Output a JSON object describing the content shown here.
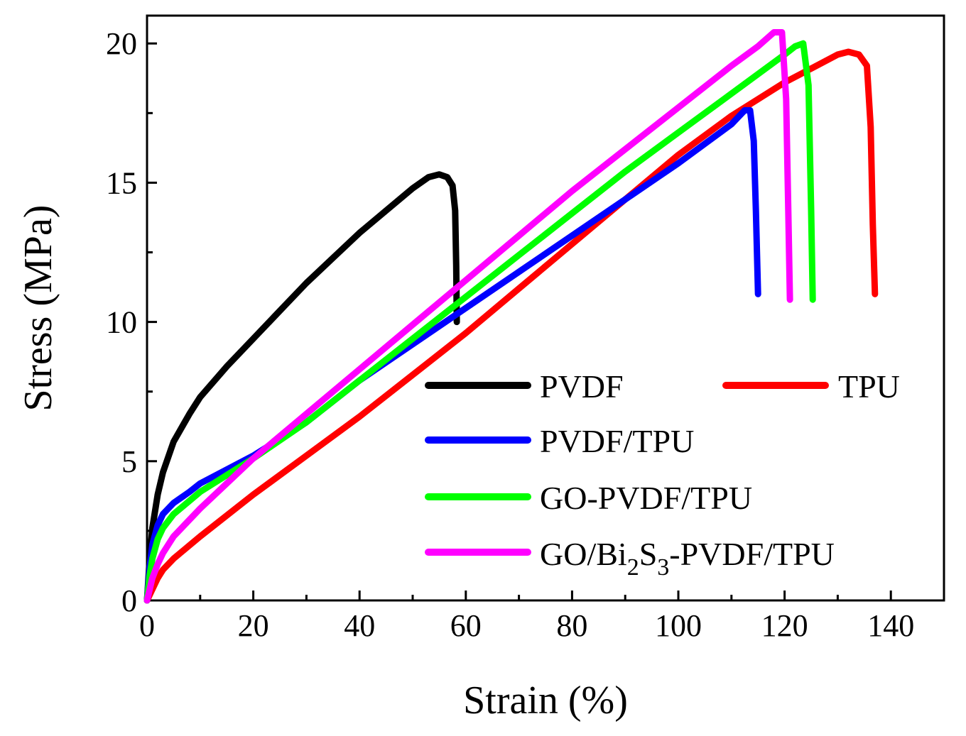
{
  "chart_data": {
    "type": "line",
    "xlabel": "Strain (%)",
    "ylabel": "Stress (MPa)",
    "xlim": [
      0,
      150
    ],
    "ylim": [
      0,
      21
    ],
    "x_ticks": [
      0,
      20,
      40,
      60,
      80,
      100,
      120,
      140
    ],
    "y_ticks": [
      0,
      5,
      10,
      15,
      20
    ],
    "grid": false,
    "legend_position": "bottom-right",
    "series": [
      {
        "name": "PVDF",
        "color": "#000000",
        "x": [
          0,
          0.5,
          1,
          2,
          3,
          5,
          8,
          10,
          15,
          20,
          25,
          30,
          35,
          40,
          45,
          50,
          53,
          55,
          56.5,
          57.5,
          58,
          58.2,
          58.3
        ],
        "y": [
          0,
          1.5,
          2.6,
          3.8,
          4.6,
          5.7,
          6.7,
          7.3,
          8.4,
          9.4,
          10.4,
          11.4,
          12.3,
          13.2,
          14.0,
          14.8,
          15.2,
          15.3,
          15.2,
          14.9,
          14.0,
          12.0,
          10.0
        ]
      },
      {
        "name": "TPU",
        "color": "#ff0000",
        "x": [
          0,
          1,
          2,
          3,
          5,
          10,
          20,
          30,
          40,
          50,
          60,
          70,
          80,
          90,
          100,
          110,
          120,
          125,
          130,
          132,
          134,
          135.5,
          136.2,
          136.6,
          137
        ],
        "y": [
          0,
          0.4,
          0.8,
          1.1,
          1.5,
          2.3,
          3.8,
          5.2,
          6.6,
          8.1,
          9.6,
          11.2,
          12.8,
          14.4,
          16.0,
          17.4,
          18.6,
          19.1,
          19.6,
          19.7,
          19.6,
          19.2,
          17.0,
          13.5,
          11.0
        ]
      },
      {
        "name": "PVDF/TPU",
        "color": "#0000ff",
        "x": [
          0,
          0.5,
          1,
          2,
          3,
          5,
          8,
          10,
          15,
          20,
          30,
          40,
          50,
          60,
          70,
          80,
          90,
          100,
          105,
          110,
          112.5,
          113.5,
          114.2,
          114.6,
          115
        ],
        "y": [
          0,
          1.2,
          2.0,
          2.7,
          3.1,
          3.5,
          3.9,
          4.2,
          4.7,
          5.2,
          6.4,
          7.9,
          9.2,
          10.5,
          11.8,
          13.1,
          14.4,
          15.7,
          16.4,
          17.1,
          17.6,
          17.6,
          16.5,
          14.0,
          11.0
        ]
      },
      {
        "name": "GO-PVDF/TPU",
        "color": "#00ff00",
        "x": [
          0,
          0.5,
          1,
          2,
          3,
          5,
          10,
          15,
          20,
          30,
          40,
          50,
          60,
          70,
          80,
          90,
          100,
          110,
          115,
          120,
          122,
          123.5,
          124.5,
          125,
          125.3
        ],
        "y": [
          0,
          0.9,
          1.5,
          2.2,
          2.6,
          3.1,
          3.9,
          4.5,
          5.1,
          6.4,
          7.9,
          9.4,
          10.9,
          12.4,
          13.9,
          15.4,
          16.8,
          18.2,
          18.9,
          19.6,
          19.9,
          20.0,
          18.5,
          14.0,
          10.8
        ]
      },
      {
        "name": "GO/Bi₂S₃-PVDF/TPU",
        "color": "#ff00ff",
        "x": [
          0,
          1,
          2,
          3,
          5,
          10,
          15,
          20,
          30,
          40,
          50,
          60,
          70,
          80,
          90,
          100,
          110,
          115,
          118,
          119.5,
          120.3,
          120.7,
          121
        ],
        "y": [
          0,
          0.8,
          1.3,
          1.7,
          2.3,
          3.3,
          4.2,
          5.1,
          6.7,
          8.3,
          9.9,
          11.5,
          13.1,
          14.7,
          16.2,
          17.7,
          19.2,
          19.9,
          20.4,
          20.4,
          18.0,
          14.0,
          10.8
        ]
      }
    ]
  },
  "legend": {
    "pvdf": "PVDF",
    "tpu": "TPU",
    "pvdf_tpu": "PVDF/TPU",
    "go_pvdf_tpu": "GO-PVDF/TPU",
    "go_bis_prefix": "GO/Bi",
    "go_bis_sub1": "2",
    "go_bis_mid": "S",
    "go_bis_sub2": "3",
    "go_bis_suffix": "-PVDF/TPU"
  }
}
